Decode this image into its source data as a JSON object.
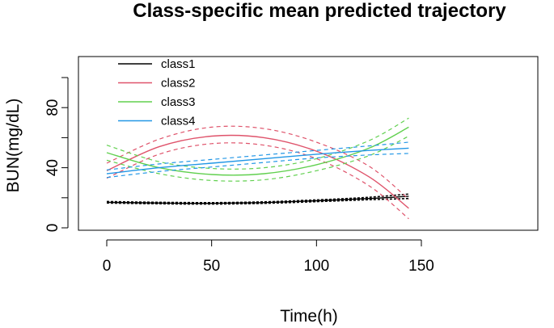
{
  "chart_data": {
    "type": "line",
    "title": "Class-specific mean predicted trajectory",
    "xlabel": "Time(h)",
    "ylabel": "BUN(mg/dL)",
    "xlim": [
      0,
      150
    ],
    "ylim": [
      0,
      100
    ],
    "x_ticks": [
      0,
      50,
      100,
      150
    ],
    "y_ticks": [
      0,
      40,
      80
    ],
    "legend_position": "top-left",
    "grid": false,
    "series": [
      {
        "name": "class1",
        "color": "#000000",
        "mean": {
          "x": [
            0,
            25,
            50,
            75,
            100,
            125,
            144
          ],
          "y": [
            17,
            16.5,
            16.3,
            16.8,
            18,
            19.5,
            21
          ]
        },
        "upper": {
          "x": [
            0,
            25,
            50,
            75,
            100,
            125,
            144
          ],
          "y": [
            17.5,
            17,
            16.8,
            17.3,
            18.6,
            20.3,
            22.5
          ]
        },
        "lower": {
          "x": [
            0,
            25,
            50,
            75,
            100,
            125,
            144
          ],
          "y": [
            16.5,
            16,
            15.8,
            16.3,
            17.4,
            18.7,
            19.5
          ]
        }
      },
      {
        "name": "class2",
        "color": "#DF536B",
        "mean": {
          "x": [
            0,
            25,
            50,
            75,
            100,
            125,
            144
          ],
          "y": [
            38,
            54,
            61,
            60,
            51,
            34,
            13
          ]
        },
        "upper": {
          "x": [
            0,
            25,
            50,
            75,
            100,
            125,
            144
          ],
          "y": [
            43,
            59,
            67,
            66,
            57,
            41,
            19
          ]
        },
        "lower": {
          "x": [
            0,
            25,
            50,
            75,
            100,
            125,
            144
          ],
          "y": [
            33,
            49,
            56,
            55,
            46,
            28,
            6
          ]
        }
      },
      {
        "name": "class3",
        "color": "#61D04F",
        "mean": {
          "x": [
            0,
            25,
            50,
            75,
            100,
            125,
            144
          ],
          "y": [
            50,
            40,
            35.5,
            36,
            42,
            53,
            67
          ]
        },
        "upper": {
          "x": [
            0,
            25,
            50,
            75,
            100,
            125,
            144
          ],
          "y": [
            55,
            44,
            39.5,
            40,
            46,
            58,
            73
          ]
        },
        "lower": {
          "x": [
            0,
            25,
            50,
            75,
            100,
            125,
            144
          ],
          "y": [
            45,
            36,
            31.5,
            32,
            38,
            48,
            61
          ]
        }
      },
      {
        "name": "class4",
        "color": "#2297E6",
        "mean": {
          "x": [
            0,
            25,
            50,
            75,
            100,
            125,
            144
          ],
          "y": [
            36,
            40,
            43,
            46,
            49,
            51.5,
            53
          ]
        },
        "upper": {
          "x": [
            0,
            25,
            50,
            75,
            100,
            125,
            144
          ],
          "y": [
            38.5,
            42.5,
            45.5,
            48.5,
            51.5,
            54.5,
            57
          ]
        },
        "lower": {
          "x": [
            0,
            25,
            50,
            75,
            100,
            125,
            144
          ],
          "y": [
            33.5,
            37.5,
            40.5,
            43.5,
            46.5,
            48.5,
            49.5
          ]
        }
      }
    ]
  }
}
